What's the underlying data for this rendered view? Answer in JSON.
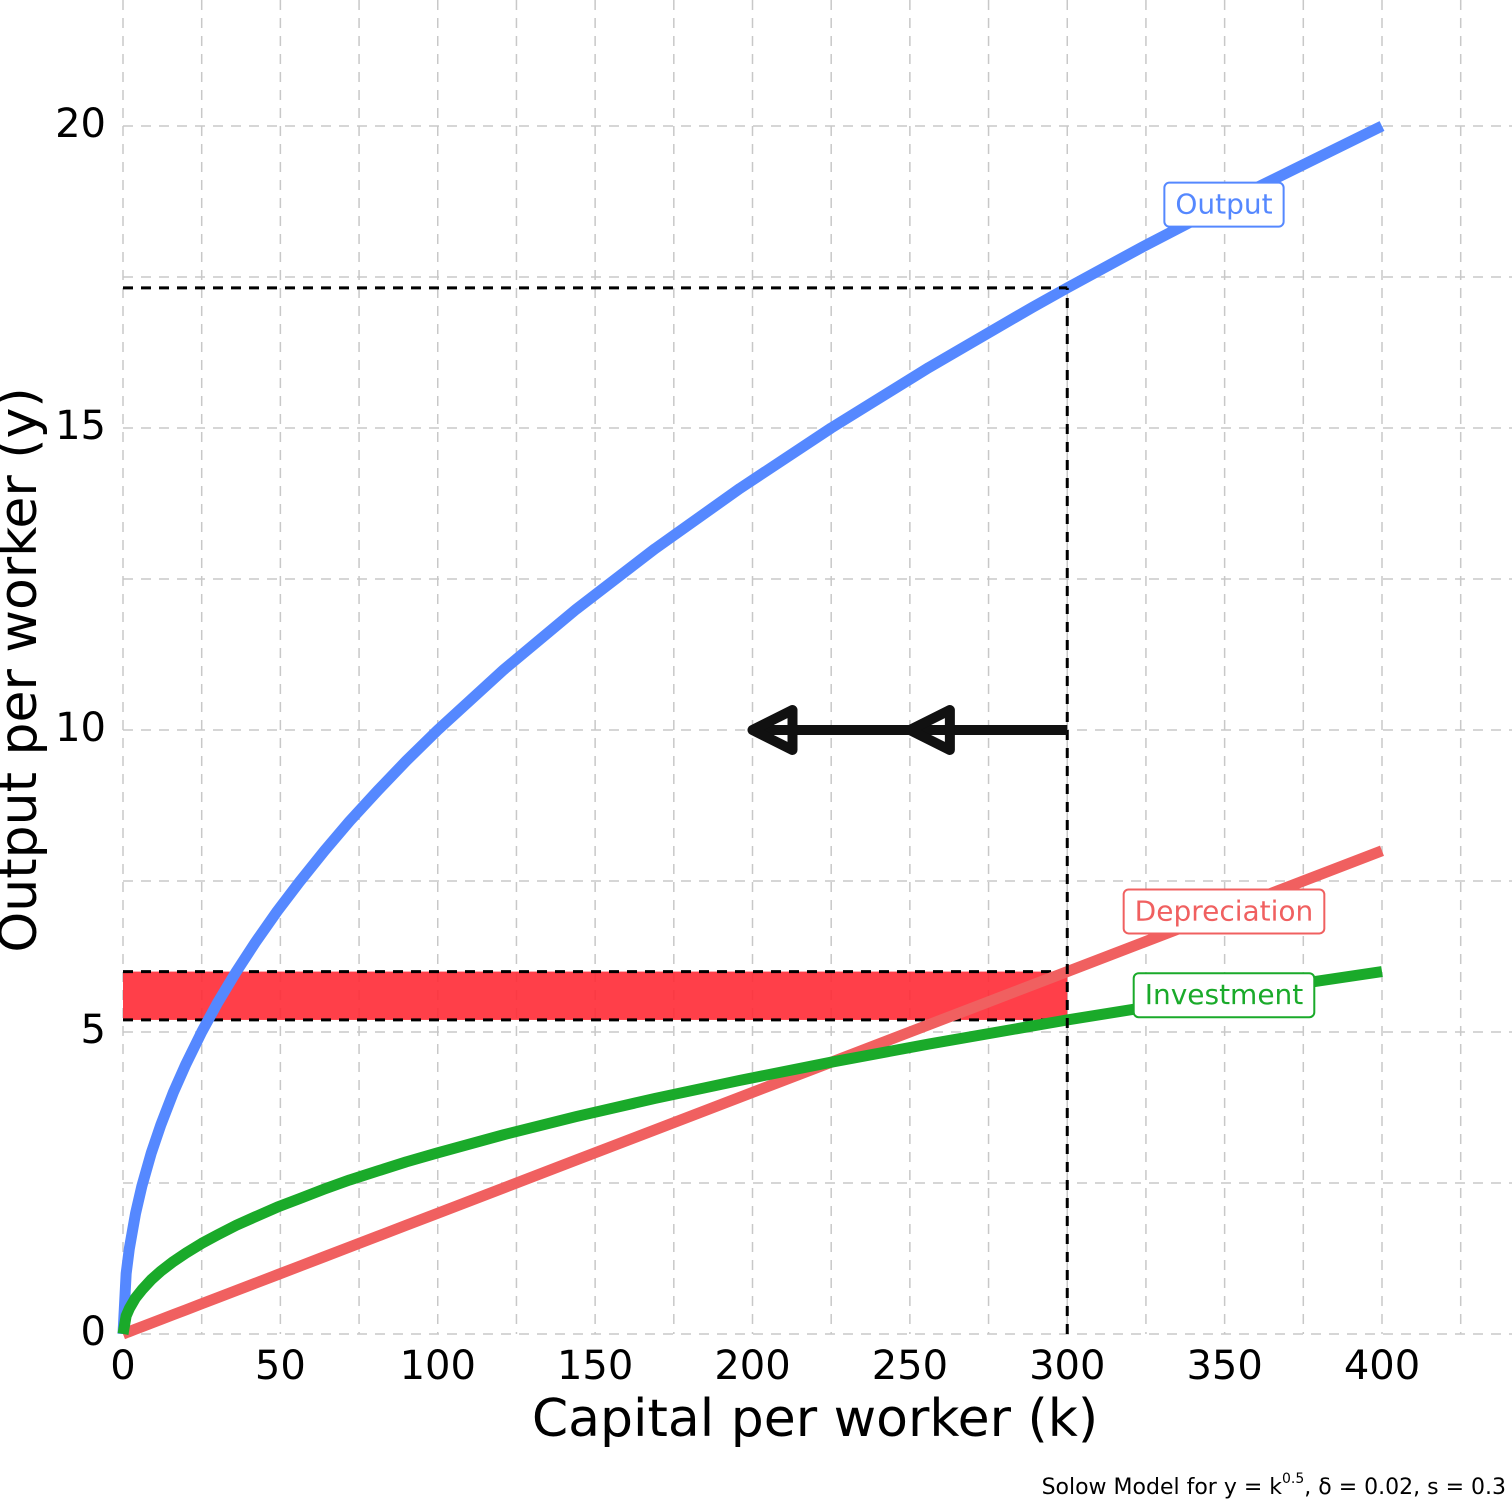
{
  "chart_data": {
    "type": "line",
    "xlabel": "Capital per worker (k)",
    "ylabel": "Output per worker (y)",
    "caption": {
      "prefix": "Solow Model for y = k",
      "sup": "0.5",
      "suffix": ", δ = 0.02, s = 0.3"
    },
    "x": [
      0,
      1,
      2,
      4,
      6,
      9,
      12,
      16,
      20,
      25,
      30,
      36,
      42,
      49,
      56,
      64,
      72,
      81,
      90,
      100,
      121,
      144,
      169,
      196,
      225,
      256,
      289,
      300,
      324,
      361,
      400
    ],
    "series": [
      {
        "name": "Output",
        "color": "#5588ff",
        "values": [
          0,
          1,
          1.41,
          2,
          2.45,
          3,
          3.46,
          4,
          4.47,
          5,
          5.48,
          6,
          6.48,
          7,
          7.48,
          8,
          8.49,
          9,
          9.49,
          10,
          11,
          12,
          13,
          14,
          15,
          16,
          17,
          17.32,
          18,
          19,
          20
        ]
      },
      {
        "name": "Depreciation",
        "color": "#f06060",
        "values": [
          0,
          0.02,
          0.04,
          0.08,
          0.12,
          0.18,
          0.24,
          0.32,
          0.4,
          0.5,
          0.6,
          0.72,
          0.84,
          0.98,
          1.12,
          1.28,
          1.44,
          1.62,
          1.8,
          2,
          2.42,
          2.88,
          3.38,
          3.92,
          4.5,
          5.12,
          5.78,
          6,
          6.48,
          7.22,
          8
        ]
      },
      {
        "name": "Investment",
        "color": "#1aaa2a",
        "values": [
          0,
          0.3,
          0.42,
          0.6,
          0.73,
          0.9,
          1.04,
          1.2,
          1.34,
          1.5,
          1.64,
          1.8,
          1.94,
          2.1,
          2.24,
          2.4,
          2.55,
          2.7,
          2.85,
          3,
          3.3,
          3.6,
          3.9,
          4.2,
          4.5,
          4.8,
          5.1,
          5.2,
          5.4,
          5.7,
          6
        ]
      }
    ],
    "xlim": [
      0,
      440
    ],
    "ylim": [
      0,
      22
    ],
    "xticks": [
      0,
      50,
      100,
      150,
      200,
      250,
      300,
      350,
      400
    ],
    "yticks": [
      0,
      5,
      10,
      15,
      20
    ],
    "xminor": [
      25,
      75,
      125,
      175,
      225,
      275,
      325,
      375,
      425
    ],
    "yminor": [
      2.5,
      7.5,
      12.5,
      17.5
    ],
    "grid": true,
    "annotations": {
      "k_line": 300,
      "y_line": 17.32,
      "band": [
        5.2,
        6
      ],
      "band_color": "#ff2a35",
      "arrow": {
        "y": 10,
        "from": 300,
        "to": 200,
        "heads": [
          250,
          200
        ]
      }
    }
  }
}
